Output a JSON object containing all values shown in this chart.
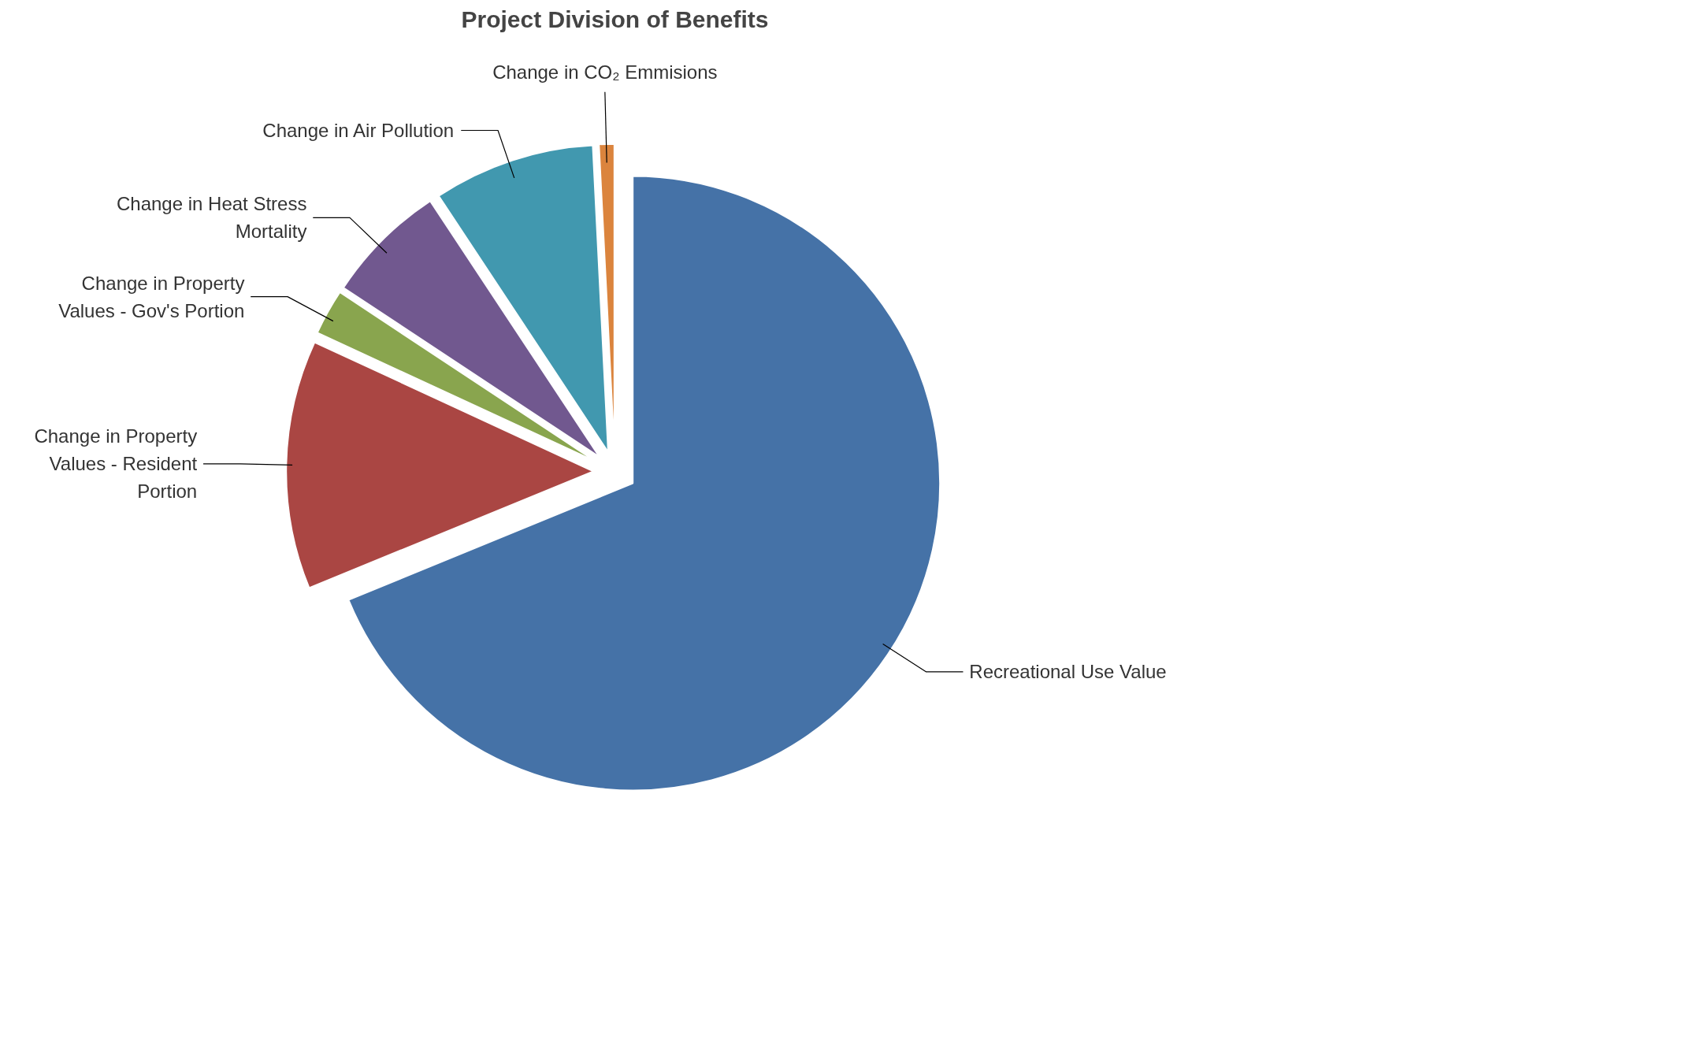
{
  "chart_data": {
    "type": "pie",
    "title": "Project Division of Benefits",
    "categories": [
      "Recreational Use Value",
      "Change in Property Values - Resident Portion",
      "Change in Property Values - Gov's Portion",
      "Change in Heat Stress Mortality",
      "Change in Air Pollution",
      "Change in CO₂ Emmisions"
    ],
    "values": [
      68.8,
      13.1,
      2.4,
      6.4,
      8.5,
      0.8
    ],
    "colors": [
      "#4572a7",
      "#aa4643",
      "#89a54e",
      "#71588f",
      "#4198af",
      "#db843d"
    ]
  }
}
